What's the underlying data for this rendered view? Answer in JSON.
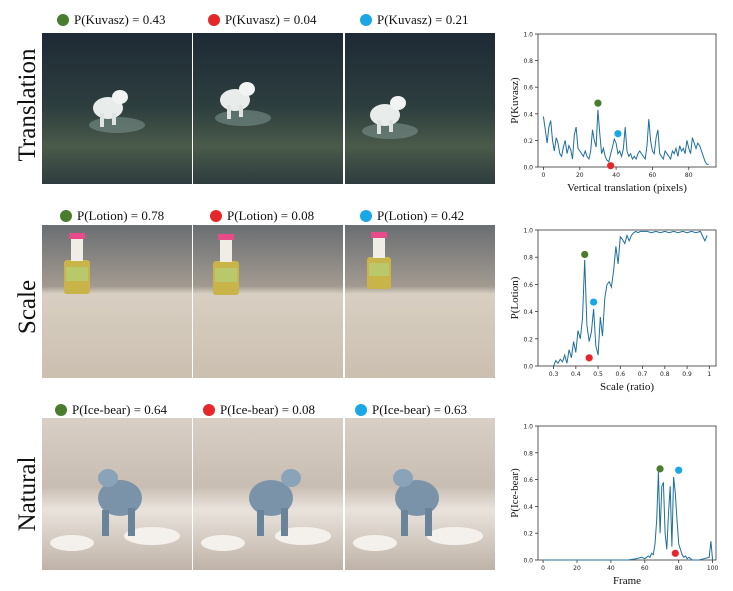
{
  "colors": {
    "green": "#4a7c2e",
    "red": "#e5262a",
    "cyan": "#19a7e6",
    "line": "#1f6f9e"
  },
  "rows": [
    {
      "label": "Translation",
      "probs": [
        "P(Kuvasz) = 0.43",
        "P(Kuvasz) = 0.04",
        "P(Kuvasz) = 0.21"
      ],
      "image_icon": "dog-in-water-image"
    },
    {
      "label": "Scale",
      "probs": [
        "P(Lotion) = 0.78",
        "P(Lotion) = 0.08",
        "P(Lotion) = 0.42"
      ],
      "image_icon": "lotion-bottle-image"
    },
    {
      "label": "Natural",
      "probs": [
        "P(Ice-bear) = 0.64",
        "P(Ice-bear) = 0.08",
        "P(Ice-bear) = 0.63"
      ],
      "image_icon": "polar-bear-image"
    }
  ],
  "chart_data": [
    {
      "type": "line",
      "xlabel": "Vertical translation (pixels)",
      "ylabel": "P(Kuvasz)",
      "xlim": [
        -3,
        95
      ],
      "ylim": [
        0,
        1.0
      ],
      "xticks": [
        0,
        20,
        40,
        60,
        80
      ],
      "yticks": [
        0.0,
        0.2,
        0.4,
        0.6,
        0.8,
        1.0
      ],
      "x": [
        0,
        1,
        2,
        3,
        4,
        5,
        6,
        7,
        8,
        9,
        10,
        11,
        12,
        13,
        14,
        15,
        16,
        17,
        18,
        19,
        20,
        21,
        22,
        23,
        24,
        25,
        26,
        27,
        28,
        29,
        30,
        31,
        32,
        33,
        34,
        35,
        36,
        37,
        38,
        39,
        40,
        41,
        42,
        43,
        44,
        45,
        46,
        47,
        48,
        49,
        50,
        51,
        52,
        53,
        54,
        55,
        56,
        57,
        58,
        59,
        60,
        61,
        62,
        63,
        64,
        65,
        66,
        67,
        68,
        69,
        70,
        71,
        72,
        73,
        74,
        75,
        76,
        77,
        78,
        79,
        80,
        81,
        82,
        83,
        84,
        85,
        86,
        87,
        88,
        89,
        90,
        91
      ],
      "y": [
        0.38,
        0.28,
        0.18,
        0.3,
        0.35,
        0.2,
        0.12,
        0.22,
        0.18,
        0.1,
        0.08,
        0.15,
        0.2,
        0.1,
        0.16,
        0.13,
        0.06,
        0.24,
        0.3,
        0.14,
        0.12,
        0.1,
        0.08,
        0.12,
        0.08,
        0.06,
        0.12,
        0.28,
        0.2,
        0.15,
        0.43,
        0.25,
        0.1,
        0.14,
        0.08,
        0.05,
        0.04,
        0.1,
        0.15,
        0.21,
        0.18,
        0.1,
        0.12,
        0.08,
        0.14,
        0.3,
        0.12,
        0.08,
        0.1,
        0.06,
        0.08,
        0.06,
        0.1,
        0.12,
        0.1,
        0.08,
        0.06,
        0.16,
        0.36,
        0.2,
        0.12,
        0.1,
        0.22,
        0.28,
        0.1,
        0.08,
        0.06,
        0.12,
        0.1,
        0.08,
        0.06,
        0.12,
        0.1,
        0.14,
        0.08,
        0.16,
        0.12,
        0.14,
        0.1,
        0.2,
        0.14,
        0.1,
        0.22,
        0.18,
        0.14,
        0.18,
        0.16,
        0.12,
        0.08,
        0.04,
        0.02,
        0.02
      ],
      "markers": [
        {
          "x": 30,
          "y": 0.48,
          "color": "green"
        },
        {
          "x": 37,
          "y": 0.01,
          "color": "red"
        },
        {
          "x": 41,
          "y": 0.25,
          "color": "cyan"
        }
      ]
    },
    {
      "type": "line",
      "xlabel": "Scale (ratio)",
      "ylabel": "P(Lotion)",
      "xlim": [
        0.23,
        1.03
      ],
      "ylim": [
        0,
        1.0
      ],
      "xticks": [
        0.3,
        0.4,
        0.5,
        0.6,
        0.7,
        0.8,
        0.9,
        1.0
      ],
      "yticks": [
        0.0,
        0.2,
        0.4,
        0.6,
        0.8,
        1.0
      ],
      "x": [
        0.3,
        0.31,
        0.32,
        0.33,
        0.34,
        0.35,
        0.36,
        0.37,
        0.38,
        0.39,
        0.4,
        0.41,
        0.42,
        0.43,
        0.44,
        0.45,
        0.46,
        0.47,
        0.48,
        0.49,
        0.5,
        0.51,
        0.52,
        0.53,
        0.54,
        0.55,
        0.56,
        0.57,
        0.58,
        0.59,
        0.6,
        0.61,
        0.62,
        0.63,
        0.64,
        0.65,
        0.66,
        0.67,
        0.68,
        0.69,
        0.7,
        0.72,
        0.74,
        0.76,
        0.78,
        0.8,
        0.82,
        0.84,
        0.86,
        0.88,
        0.9,
        0.92,
        0.94,
        0.96,
        0.98,
        0.99
      ],
      "y": [
        0.0,
        0.04,
        0.02,
        0.05,
        0.03,
        0.08,
        0.02,
        0.12,
        0.06,
        0.18,
        0.1,
        0.26,
        0.2,
        0.35,
        0.78,
        0.3,
        0.18,
        0.25,
        0.42,
        0.15,
        0.08,
        0.36,
        0.22,
        0.5,
        0.6,
        0.62,
        0.58,
        0.7,
        0.88,
        0.75,
        0.95,
        0.93,
        0.9,
        0.96,
        0.92,
        0.96,
        0.98,
        0.99,
        0.98,
        0.99,
        0.99,
        0.99,
        0.98,
        0.99,
        0.98,
        0.99,
        0.98,
        0.99,
        0.98,
        0.99,
        0.98,
        0.99,
        0.98,
        0.99,
        0.92,
        0.96
      ],
      "markers": [
        {
          "x": 0.44,
          "y": 0.82,
          "color": "green"
        },
        {
          "x": 0.46,
          "y": 0.06,
          "color": "red"
        },
        {
          "x": 0.48,
          "y": 0.47,
          "color": "cyan"
        }
      ]
    },
    {
      "type": "line",
      "xlabel": "Frame",
      "ylabel": "P(Ice-bear)",
      "xlim": [
        -3,
        102
      ],
      "ylim": [
        0,
        1.0
      ],
      "xticks": [
        0,
        20,
        40,
        60,
        80,
        100
      ],
      "yticks": [
        0.0,
        0.2,
        0.4,
        0.6,
        0.8,
        1.0
      ],
      "x": [
        0,
        10,
        20,
        30,
        40,
        50,
        55,
        58,
        60,
        62,
        63,
        64,
        65,
        66,
        67,
        68,
        69,
        70,
        71,
        72,
        73,
        74,
        75,
        76,
        77,
        78,
        79,
        80,
        81,
        82,
        83,
        84,
        85,
        86,
        87,
        88,
        90,
        92,
        95,
        98,
        99,
        100
      ],
      "y": [
        0.0,
        0.0,
        0.0,
        0.0,
        0.0,
        0.0,
        0.01,
        0.02,
        0.01,
        0.03,
        0.02,
        0.05,
        0.04,
        0.12,
        0.3,
        0.66,
        0.2,
        0.55,
        0.58,
        0.2,
        0.08,
        0.35,
        0.55,
        0.1,
        0.62,
        0.5,
        0.3,
        0.12,
        0.08,
        0.04,
        0.02,
        0.03,
        0.01,
        0.02,
        0.01,
        0.0,
        0.0,
        0.0,
        0.01,
        0.02,
        0.14,
        0.0
      ],
      "markers": [
        {
          "x": 69,
          "y": 0.68,
          "color": "green"
        },
        {
          "x": 78,
          "y": 0.05,
          "color": "red"
        },
        {
          "x": 80,
          "y": 0.67,
          "color": "cyan"
        }
      ]
    }
  ]
}
